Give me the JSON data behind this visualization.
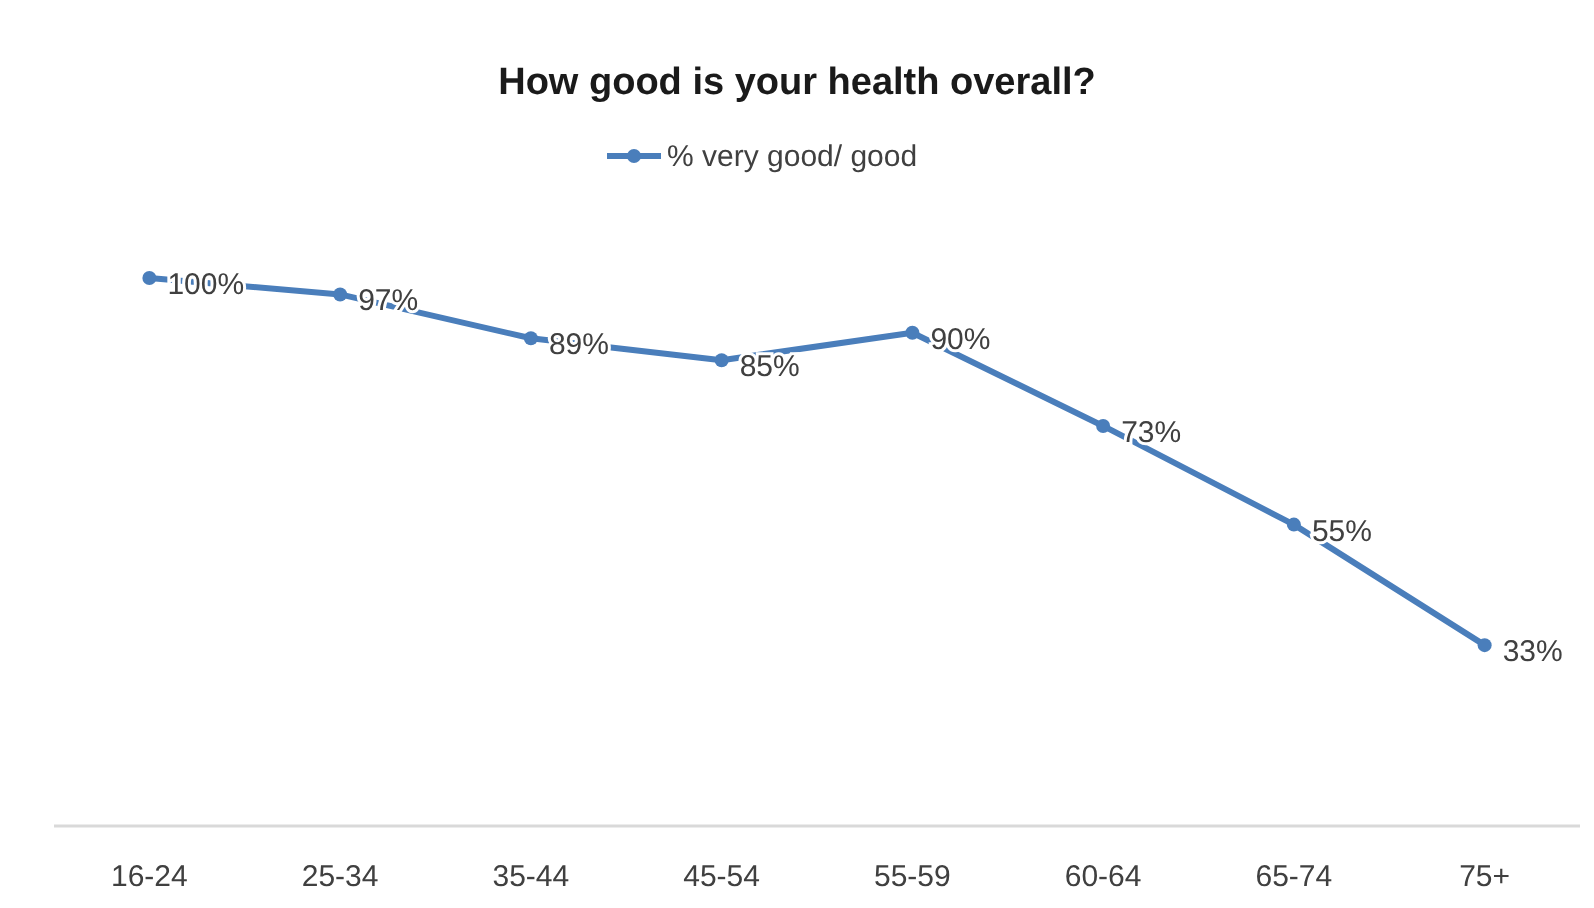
{
  "chart_data": {
    "type": "line",
    "title": "How good is your health overall?",
    "categories": [
      "16-24",
      "25-34",
      "35-44",
      "45-54",
      "55-59",
      "60-64",
      "65-74",
      "75+"
    ],
    "series": [
      {
        "name": "% very good/ good",
        "color": "#4a7ebb",
        "values": [
          100,
          97,
          89,
          85,
          90,
          73,
          55,
          33
        ],
        "value_labels": [
          "100%",
          "97%",
          "89%",
          "85%",
          "90%",
          "73%",
          "55%",
          "33%"
        ]
      }
    ],
    "legend": "top",
    "marker": "circle",
    "line_style": "solid",
    "grid": false
  }
}
